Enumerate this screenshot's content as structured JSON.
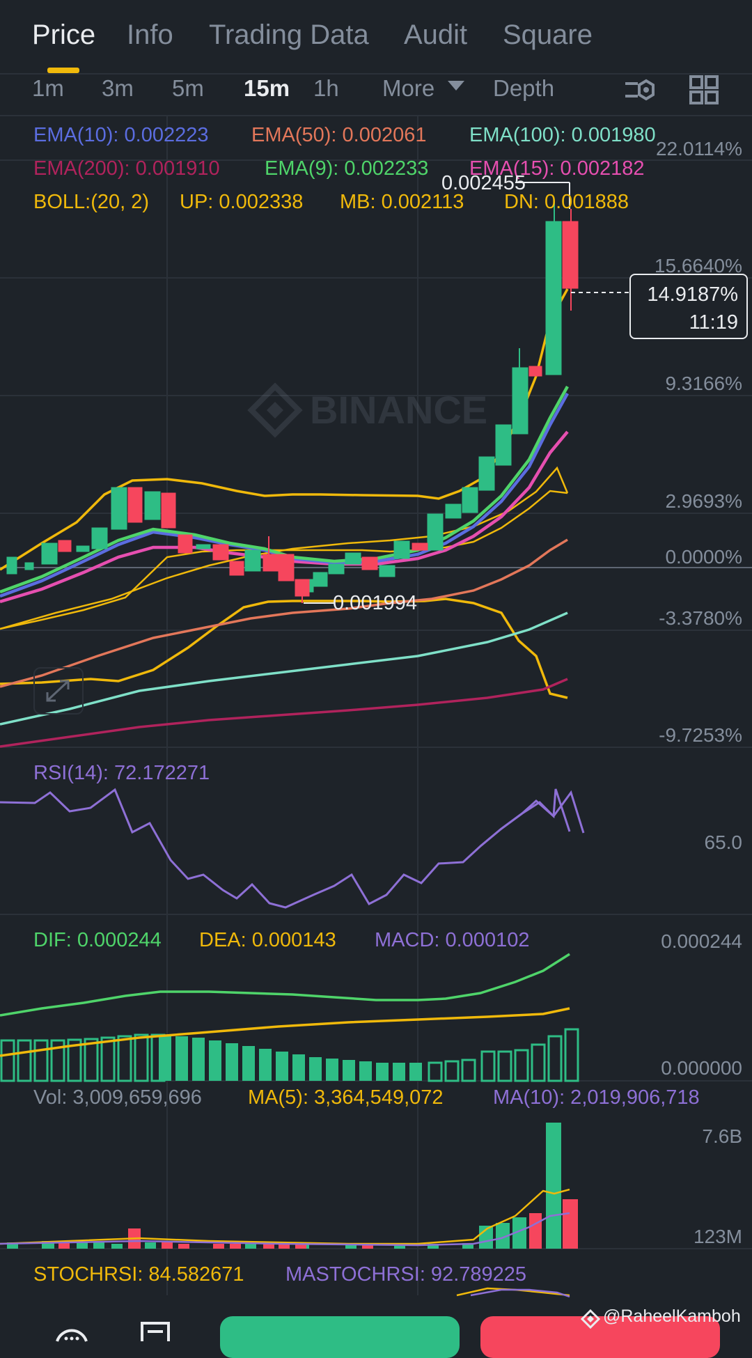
{
  "tabs": [
    "Price",
    "Info",
    "Trading Data",
    "Audit",
    "Square"
  ],
  "intervals": [
    "1m",
    "3m",
    "5m",
    "15m",
    "1h",
    "More",
    "Depth"
  ],
  "indicators": {
    "ema10": "EMA(10): 0.002223",
    "ema50": "EMA(50): 0.002061",
    "ema100": "EMA(100): 0.001980",
    "ema200": "EMA(200): 0.001910",
    "ema9": "EMA(9): 0.002233",
    "ema15": "EMA(15): 0.002182",
    "boll": "BOLL:(20, 2)",
    "boll_up": "UP: 0.002338",
    "boll_mb": "MB: 0.002113",
    "boll_dn": "DN: 0.001888"
  },
  "price_axis": [
    "22.0114%",
    "15.6640%",
    "9.3166%",
    "2.9693%",
    "0.0000%",
    "-3.3780%",
    "-9.7253%"
  ],
  "high_label": "0.002455",
  "low_label": "0.001994",
  "current": {
    "percent": "14.9187%",
    "countdown": "11:19"
  },
  "watermark_logo": "BINANCE",
  "rsi": {
    "label": "RSI(14): 72.172271",
    "axis": "65.0"
  },
  "macd": {
    "dif": "DIF: 0.000244",
    "dea": "DEA: 0.000143",
    "macd": "MACD: 0.000102",
    "axis_top": "0.000244",
    "axis_bottom": "0.000000"
  },
  "volume": {
    "vol": "Vol: 3,009,659,696",
    "ma5": "MA(5): 3,364,549,072",
    "ma10": "MA(10): 2,019,906,718",
    "axis_top": "7.6B",
    "axis_bottom": "123M"
  },
  "stochrsi": {
    "stoch": "STOCHRSI: 84.582671",
    "ma": "MASTOCHRSI: 92.789225"
  },
  "credit": "@RaheelKamboh",
  "colors": {
    "bg": "#1E2329",
    "up": "#2EBD85",
    "down": "#F6465D",
    "accent": "#F0B90B",
    "ema10": "#5B6DE0",
    "ema50": "#E3775A",
    "ema100": "#7FE0C8",
    "ema200": "#B0235C",
    "ema9": "#4FD46A",
    "ema15": "#E64FB0",
    "boll": "#F0B90B",
    "purple": "#8E70D6"
  }
}
